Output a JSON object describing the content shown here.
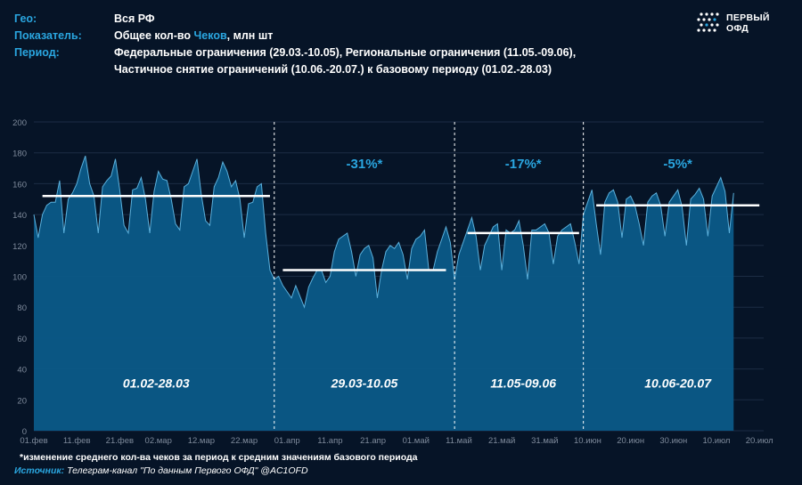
{
  "header": {
    "geo_label": "Гео:",
    "geo_value": "Вся РФ",
    "indicator_label": "Показатель:",
    "indicator_pre": "Общее кол-во ",
    "indicator_highlight": "Чеков",
    "indicator_post": ", млн шт",
    "period_label": "Период:",
    "period_line1": "Федеральные ограничения (29.03.-10.05), Региональные ограничения (11.05.-09.06),",
    "period_line2": "Частичное снятие ограничений (10.06.-20.07.) к базовому периоду (01.02.-28.03)"
  },
  "logo": {
    "line1": "ПЕРВЫЙ",
    "line2": "ОФД"
  },
  "chart_data": {
    "type": "area",
    "title": "Общее кол-во Чеков, млн шт",
    "ylim": [
      0,
      200
    ],
    "yticks": [
      0,
      20,
      40,
      60,
      80,
      100,
      120,
      140,
      160,
      180,
      200
    ],
    "xlim_days": [
      0,
      170
    ],
    "xticks": [
      {
        "day": 0,
        "label": "01.фев"
      },
      {
        "day": 10,
        "label": "11.фев"
      },
      {
        "day": 20,
        "label": "21.фев"
      },
      {
        "day": 29,
        "label": "02.мар"
      },
      {
        "day": 39,
        "label": "12.мар"
      },
      {
        "day": 49,
        "label": "22.мар"
      },
      {
        "day": 59,
        "label": "01.апр"
      },
      {
        "day": 69,
        "label": "11.апр"
      },
      {
        "day": 79,
        "label": "21.апр"
      },
      {
        "day": 89,
        "label": "01.май"
      },
      {
        "day": 99,
        "label": "11.май"
      },
      {
        "day": 109,
        "label": "21.май"
      },
      {
        "day": 119,
        "label": "31.май"
      },
      {
        "day": 129,
        "label": "10.июн"
      },
      {
        "day": 139,
        "label": "20.июн"
      },
      {
        "day": 149,
        "label": "30.июн"
      },
      {
        "day": 159,
        "label": "10.июл"
      },
      {
        "day": 169,
        "label": "20.июл"
      }
    ],
    "series": [
      {
        "name": "Чеки, млн шт",
        "start": "01.02",
        "values": [
          140,
          125,
          140,
          146,
          148,
          148,
          162,
          128,
          150,
          154,
          160,
          170,
          178,
          160,
          152,
          128,
          158,
          162,
          165,
          176,
          156,
          133,
          128,
          156,
          157,
          164,
          150,
          128,
          155,
          168,
          163,
          162,
          150,
          134,
          130,
          158,
          160,
          168,
          176,
          153,
          136,
          133,
          158,
          164,
          174,
          168,
          158,
          162,
          150,
          125,
          147,
          148,
          158,
          160,
          128,
          104,
          98,
          100,
          94,
          90,
          86,
          94,
          87,
          80,
          93,
          99,
          104,
          104,
          96,
          100,
          116,
          124,
          126,
          128,
          116,
          100,
          114,
          118,
          120,
          112,
          86,
          104,
          116,
          120,
          118,
          122,
          114,
          98,
          118,
          124,
          126,
          130,
          104,
          104,
          116,
          124,
          132,
          122,
          98,
          114,
          122,
          130,
          138,
          126,
          104,
          120,
          126,
          132,
          134,
          104,
          130,
          128,
          130,
          136,
          120,
          98,
          130,
          130,
          132,
          134,
          128,
          108,
          126,
          130,
          132,
          134,
          122,
          108,
          140,
          148,
          156,
          134,
          114,
          148,
          154,
          156,
          148,
          125,
          150,
          152,
          146,
          134,
          120,
          148,
          152,
          154,
          146,
          126,
          148,
          152,
          156,
          145,
          120,
          150,
          153,
          157,
          150,
          126,
          152,
          158,
          164,
          155,
          128,
          154
        ]
      }
    ],
    "separators_days": [
      56,
      98,
      128
    ],
    "periods": [
      {
        "label": "01.02-28.03",
        "start": 2,
        "end": 55,
        "baseline": 152,
        "change": ""
      },
      {
        "label": "29.03-10.05",
        "start": 58,
        "end": 96,
        "baseline": 104,
        "change": "-31%*"
      },
      {
        "label": "11.05-09.06",
        "start": 101,
        "end": 127,
        "baseline": 128,
        "change": "-17%*"
      },
      {
        "label": "10.06-20.07",
        "start": 131,
        "end": 169,
        "baseline": 146,
        "change": "-5%*"
      }
    ],
    "colors": {
      "area": "#0b5a88",
      "line": "#5bb0dc",
      "baseline": "#ffffff",
      "change": "#2aa6e0",
      "grid": "#1c2c44",
      "tick": "#7e8a9b"
    }
  },
  "footnote": "*изменение среднего кол-ва чеков  за период к средним значениям базового периода",
  "source": {
    "label": "Источник:",
    "text": " Телеграм-канал \"По данным Первого ОФД\" @AC1OFD"
  }
}
